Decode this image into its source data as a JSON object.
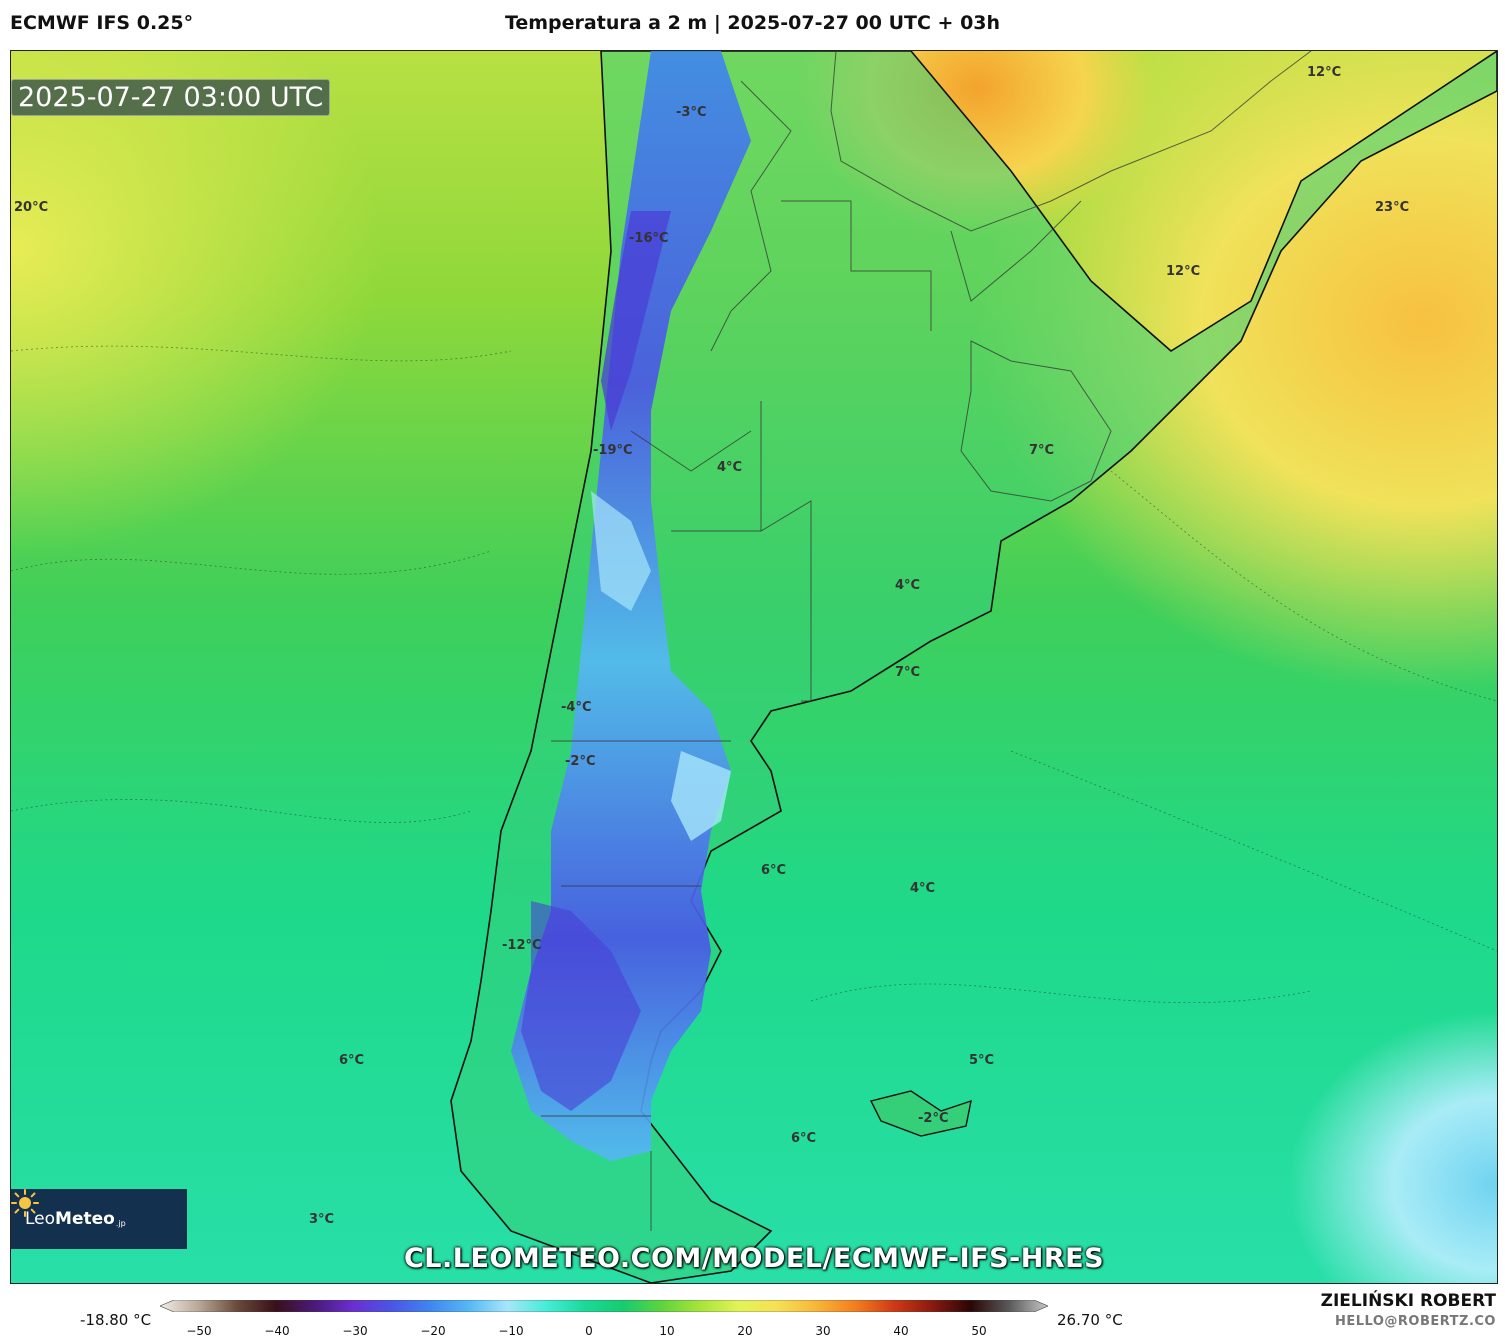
{
  "header": {
    "model": "ECMWF IFS 0.25°",
    "title": "Temperatura a 2 m | 2025-07-27 00 UTC + 03h"
  },
  "map": {
    "valid_time": "2025-07-27 03:00 UTC",
    "watermark": "CL.LEOMETEO.COM/MODEL/ECMWF-IFS-HRES",
    "labels": [
      "12°C",
      "-3°C",
      "20°C",
      "-16°C",
      "23°C",
      "12°C",
      "-19°C",
      "4°C",
      "7°C",
      "4°C",
      "7°C",
      "-4°C",
      "-2°C",
      "6°C",
      "4°C",
      "-12°C",
      "6°C",
      "5°C",
      "6°C",
      "-2°C",
      "3°C"
    ],
    "logo": {
      "name_light": "Leo",
      "name_bold": "Meteo",
      "suffix": ".jp"
    }
  },
  "legend": {
    "min": "-18.80 °C",
    "max": "26.70 °C",
    "ticks": [
      "−50",
      "−40",
      "−30",
      "−20",
      "−10",
      "0",
      "10",
      "20",
      "30",
      "40",
      "50"
    ],
    "colors": [
      "#f3ece4",
      "#b9a898",
      "#6a4a3a",
      "#3a0f1a",
      "#4a1a7a",
      "#6a2fd0",
      "#4a55e8",
      "#3f86ef",
      "#55b9f5",
      "#a6e6fb",
      "#47ecd8",
      "#1bd99a",
      "#16cc6f",
      "#5fd43d",
      "#a8e43c",
      "#e3f35a",
      "#f6e055",
      "#f7b63a",
      "#f37e1f",
      "#cf3a15",
      "#8a1a10",
      "#2a0606",
      "#5a5a5a",
      "#c8c8c8"
    ]
  },
  "footer": {
    "author": "ZIELIŃSKI ROBERT",
    "email": "HELLO@ROBERTZ.CO"
  }
}
